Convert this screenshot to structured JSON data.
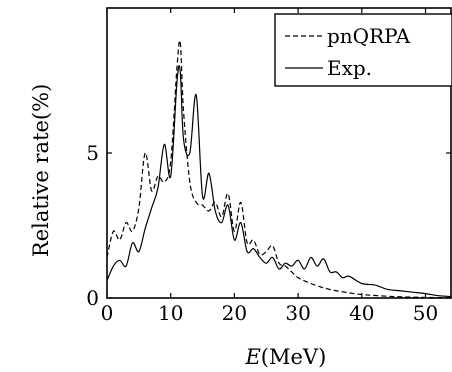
{
  "chart_data": {
    "type": "line",
    "title": "",
    "xlabel": "E(MeV)",
    "xlabel_italic_part": "E",
    "xlabel_rest": "(MeV)",
    "ylabel": "Relative rate(%)",
    "xlim": [
      0,
      54
    ],
    "ylim": [
      0,
      10
    ],
    "xticks": [
      0,
      10,
      20,
      30,
      40,
      50
    ],
    "yticks": [
      0,
      5
    ],
    "grid": false,
    "legend_position": "top-right",
    "series": [
      {
        "name": "pnQRPA",
        "style": "dashed",
        "color": "#000000",
        "x": [
          0,
          1,
          2,
          3,
          4,
          5,
          6,
          7,
          8,
          9,
          10,
          11,
          11.5,
          12,
          13,
          14,
          15,
          16,
          17,
          18,
          19,
          20,
          21,
          22,
          23,
          24,
          25,
          26,
          27,
          28,
          29,
          30,
          32,
          34,
          36,
          38,
          40,
          45,
          50,
          54
        ],
        "y": [
          1.4,
          2.3,
          2.0,
          2.6,
          2.3,
          3.1,
          5.0,
          3.7,
          4.2,
          4.0,
          4.7,
          8.0,
          8.8,
          6.5,
          4.0,
          3.3,
          3.2,
          3.0,
          3.3,
          2.8,
          3.6,
          2.3,
          3.3,
          1.9,
          2.0,
          1.5,
          1.6,
          1.8,
          1.2,
          1.1,
          0.9,
          0.7,
          0.5,
          0.35,
          0.25,
          0.18,
          0.12,
          0.05,
          0.02,
          0.01
        ]
      },
      {
        "name": "Exp.",
        "style": "solid",
        "color": "#000000",
        "x": [
          0,
          1,
          2,
          3,
          4,
          5,
          6,
          7,
          8,
          9,
          10,
          11,
          11.5,
          12,
          13,
          14,
          15,
          16,
          17,
          18,
          19,
          20,
          21,
          22,
          23,
          24,
          25,
          26,
          27,
          28,
          29,
          30,
          31,
          32,
          33,
          34,
          35,
          36,
          37,
          38,
          40,
          42,
          44,
          46,
          48,
          50,
          52,
          54
        ],
        "y": [
          0.6,
          1.1,
          1.3,
          1.1,
          1.9,
          1.6,
          2.4,
          3.1,
          3.8,
          5.3,
          4.2,
          7.5,
          7.8,
          5.5,
          5.0,
          7.0,
          3.5,
          4.3,
          3.0,
          2.6,
          3.2,
          2.0,
          2.6,
          1.6,
          1.7,
          1.4,
          1.2,
          1.4,
          1.0,
          1.2,
          1.1,
          1.3,
          1.0,
          1.4,
          1.1,
          1.35,
          0.9,
          0.9,
          0.7,
          0.75,
          0.5,
          0.45,
          0.3,
          0.25,
          0.2,
          0.15,
          0.08,
          0.05
        ]
      }
    ]
  }
}
